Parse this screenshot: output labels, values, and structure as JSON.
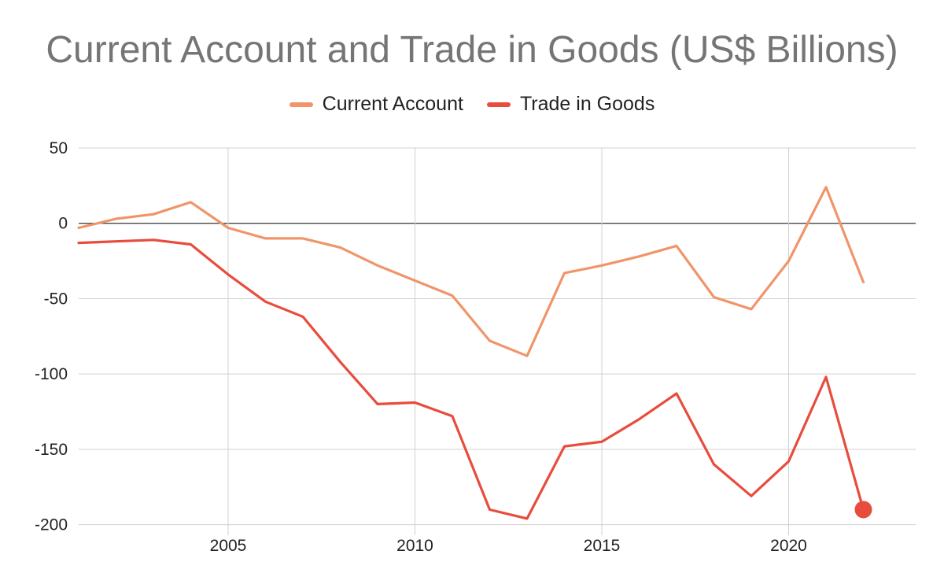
{
  "chart_data": {
    "type": "line",
    "title": "Current Account and Trade in Goods (US$ Billions)",
    "xlabel": "",
    "ylabel": "",
    "x": [
      2001,
      2002,
      2003,
      2004,
      2005,
      2006,
      2007,
      2008,
      2009,
      2010,
      2011,
      2012,
      2013,
      2014,
      2015,
      2016,
      2017,
      2018,
      2019,
      2020,
      2021,
      2022
    ],
    "series": [
      {
        "name": "Current Account",
        "color": "#f0956a",
        "values": [
          -3,
          3,
          6,
          14,
          -3,
          -10,
          -10,
          -16,
          -28,
          -38,
          -48,
          -78,
          -88,
          -33,
          -28,
          -22,
          -15,
          -49,
          -57,
          -25,
          24,
          -39
        ]
      },
      {
        "name": "Trade in Goods",
        "color": "#e84c3d",
        "values": [
          -13,
          -12,
          -11,
          -14,
          -34,
          -52,
          -62,
          -92,
          -120,
          -119,
          -128,
          -190,
          -196,
          -148,
          -145,
          -130,
          -113,
          -160,
          -181,
          -158,
          -102,
          -190
        ]
      }
    ],
    "xticks": [
      2005,
      2010,
      2015,
      2020
    ],
    "yticks": [
      50,
      0,
      -50,
      -100,
      -150,
      -200
    ],
    "xlim": [
      2001,
      2023.4
    ],
    "ylim": [
      -207,
      50
    ],
    "grid": true,
    "zero_line": true,
    "highlight": {
      "series": "Trade in Goods",
      "x": 2022
    },
    "legend_position": "top"
  }
}
